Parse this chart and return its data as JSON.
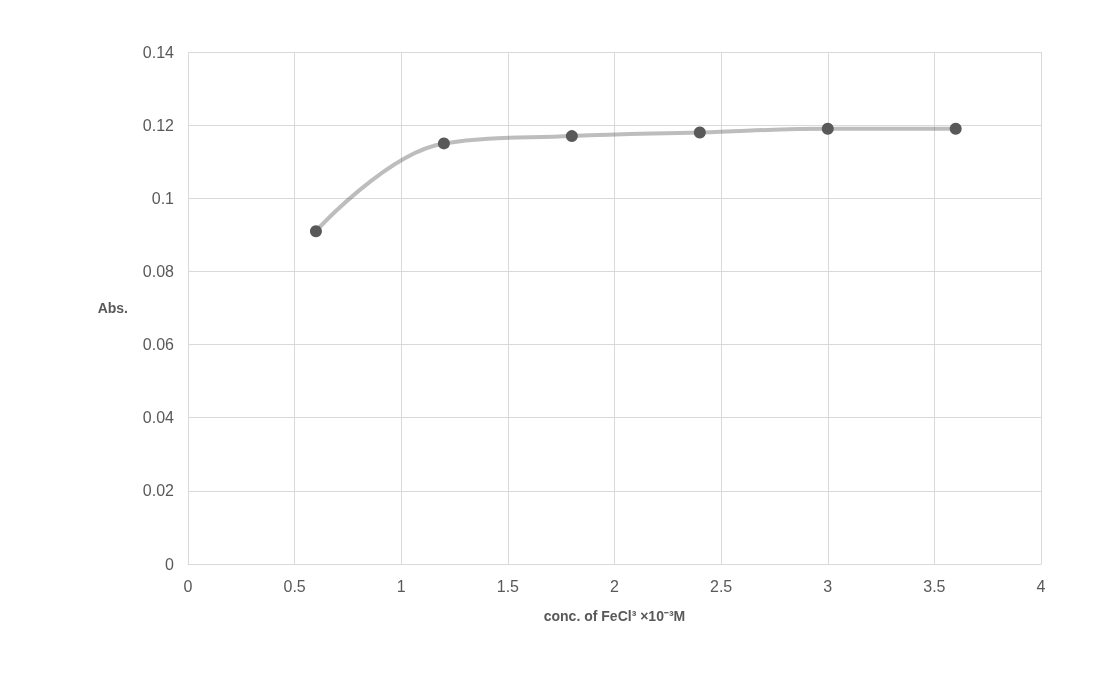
{
  "chart_data": {
    "type": "line",
    "xlabel": "conc. of FeCl³ ×10⁻³M",
    "ylabel": "Abs.",
    "x": [
      0.6,
      1.2,
      1.8,
      2.4,
      3,
      3.6
    ],
    "series": [
      {
        "color": "#595959",
        "values": [
          0.091,
          0.115,
          0.117,
          0.118,
          0.119,
          0.119
        ]
      }
    ],
    "xlim": [
      0,
      4
    ],
    "xticks": [
      0,
      0.5,
      1,
      1.5,
      2,
      2.5,
      3,
      3.5,
      4
    ],
    "ylim": [
      0,
      0.14
    ],
    "yticks": [
      0,
      0.02,
      0.04,
      0.06,
      0.08,
      0.1,
      0.12,
      0.14
    ],
    "grid": true,
    "marker": "circle",
    "line_style": "solid"
  }
}
